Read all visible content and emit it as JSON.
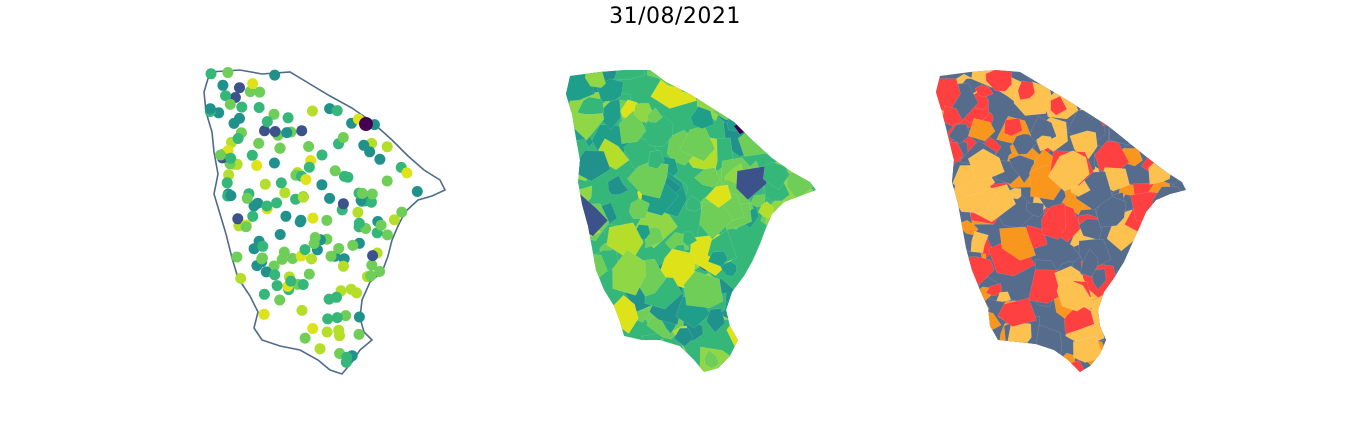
{
  "figure": {
    "title": "31/08/2021"
  },
  "panels": [
    {
      "kind": "point-map",
      "outline_color": "#4f6b8a"
    },
    {
      "kind": "choropleth-continuous",
      "palette": [
        "#440154",
        "#3b528b",
        "#21918c",
        "#1f9e89",
        "#35b779",
        "#6ece58",
        "#8fd744",
        "#b5de2b",
        "#dde318"
      ]
    },
    {
      "kind": "choropleth-categorical",
      "palette": [
        "#566c8c",
        "#ff4040",
        "#fcc14f",
        "#f9961e"
      ]
    }
  ]
}
